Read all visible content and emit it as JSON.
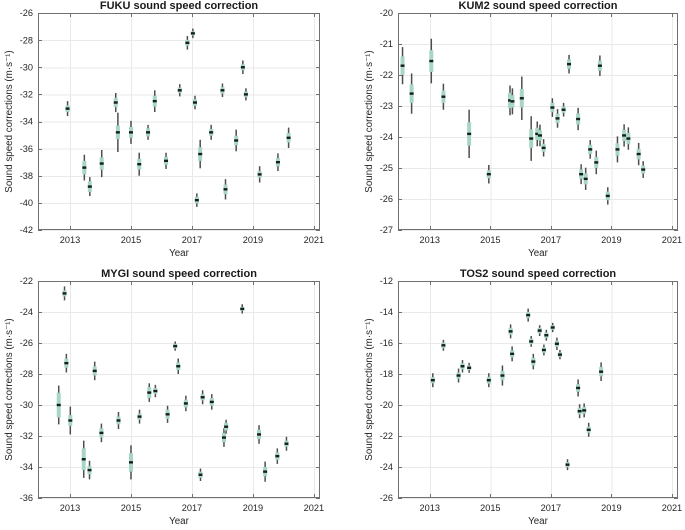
{
  "figure": {
    "background": "#ffffff",
    "description": "2x2 grid of MATLAB-style errorbar scatter plots of GNSS-A sound speed corrections versus year for four seafloor stations"
  },
  "style": {
    "errorbar_color": "#4d4d4d",
    "box_fill": "#a7d7c4",
    "marker_color": "#13201b",
    "grid_color": "#e9e9e9",
    "axis_color": "#707070",
    "text_color": "#262626",
    "title_color": "#1a1a1a"
  },
  "chart_data": [
    {
      "type": "scatter",
      "title": "FUKU sound speed correction",
      "xlabel": "Year",
      "ylabel": "Sound speed corrections (m·s⁻¹)",
      "xlim": [
        2011.95,
        2021.2
      ],
      "ylim": [
        -42,
        -26
      ],
      "xticks": [
        2013,
        2015,
        2017,
        2019,
        2021
      ],
      "yticks": [
        -42,
        -40,
        -38,
        -36,
        -34,
        -32,
        -30,
        -28,
        -26
      ],
      "grid": true,
      "legend": null,
      "point_format": [
        "year",
        "correction_m_per_s",
        "error_half_range",
        "box_half_range"
      ],
      "points": [
        [
          2012.92,
          -33.05,
          0.55,
          0.25
        ],
        [
          2013.47,
          -37.4,
          0.95,
          0.5
        ],
        [
          2013.65,
          -38.8,
          0.7,
          0.4
        ],
        [
          2014.04,
          -37.1,
          1.0,
          0.45
        ],
        [
          2014.5,
          -32.6,
          0.7,
          0.35
        ],
        [
          2014.57,
          -34.8,
          1.45,
          0.5
        ],
        [
          2015.0,
          -34.8,
          0.85,
          0.4
        ],
        [
          2015.27,
          -37.15,
          0.85,
          0.4
        ],
        [
          2015.56,
          -34.8,
          0.55,
          0.3
        ],
        [
          2015.78,
          -32.5,
          0.8,
          0.4
        ],
        [
          2016.15,
          -36.9,
          0.6,
          0.3
        ],
        [
          2016.6,
          -31.7,
          0.45,
          0.2
        ],
        [
          2016.85,
          -28.2,
          0.5,
          0.22
        ],
        [
          2017.03,
          -27.5,
          0.35,
          0.15
        ],
        [
          2017.1,
          -32.6,
          0.5,
          0.25
        ],
        [
          2017.16,
          -39.8,
          0.5,
          0.25
        ],
        [
          2017.27,
          -36.4,
          1.05,
          0.5
        ],
        [
          2017.63,
          -34.8,
          0.55,
          0.25
        ],
        [
          2018.0,
          -31.7,
          0.5,
          0.25
        ],
        [
          2018.1,
          -39.0,
          0.75,
          0.35
        ],
        [
          2018.45,
          -35.4,
          0.8,
          0.35
        ],
        [
          2018.67,
          -30.0,
          0.5,
          0.22
        ],
        [
          2018.77,
          -32.0,
          0.45,
          0.2
        ],
        [
          2019.22,
          -37.9,
          0.6,
          0.25
        ],
        [
          2019.82,
          -37.0,
          0.65,
          0.3
        ],
        [
          2020.17,
          -35.2,
          0.75,
          0.35
        ]
      ]
    },
    {
      "type": "scatter",
      "title": "KUM2 sound speed correction",
      "xlabel": "Year",
      "ylabel": "Sound speed corrections (m·s⁻¹)",
      "xlim": [
        2011.95,
        2021.2
      ],
      "ylim": [
        -27,
        -20
      ],
      "xticks": [
        2013,
        2015,
        2017,
        2019,
        2021
      ],
      "yticks": [
        -27,
        -26,
        -25,
        -24,
        -23,
        -22,
        -21,
        -20
      ],
      "grid": true,
      "legend": null,
      "point_format": [
        "year",
        "correction_m_per_s",
        "error_half_range",
        "box_half_range"
      ],
      "points": [
        [
          2012.1,
          -21.7,
          0.6,
          0.3
        ],
        [
          2012.4,
          -22.6,
          0.65,
          0.3
        ],
        [
          2013.05,
          -21.55,
          0.72,
          0.35
        ],
        [
          2013.45,
          -22.7,
          0.42,
          0.2
        ],
        [
          2014.3,
          -23.9,
          0.78,
          0.38
        ],
        [
          2014.95,
          -25.2,
          0.3,
          0.13
        ],
        [
          2015.65,
          -22.82,
          0.48,
          0.25
        ],
        [
          2015.73,
          -22.85,
          0.42,
          0.2
        ],
        [
          2016.04,
          -22.75,
          0.7,
          0.3
        ],
        [
          2016.35,
          -24.05,
          0.72,
          0.3
        ],
        [
          2016.55,
          -23.9,
          0.4,
          0.2
        ],
        [
          2016.64,
          -23.95,
          0.35,
          0.17
        ],
        [
          2016.76,
          -24.35,
          0.28,
          0.13
        ],
        [
          2017.05,
          -23.05,
          0.3,
          0.15
        ],
        [
          2017.22,
          -23.4,
          0.3,
          0.15
        ],
        [
          2017.42,
          -23.12,
          0.22,
          0.1
        ],
        [
          2017.6,
          -21.65,
          0.3,
          0.15
        ],
        [
          2017.9,
          -23.42,
          0.36,
          0.18
        ],
        [
          2018.0,
          -25.2,
          0.32,
          0.15
        ],
        [
          2018.15,
          -25.35,
          0.36,
          0.18
        ],
        [
          2018.3,
          -24.4,
          0.3,
          0.15
        ],
        [
          2018.5,
          -24.82,
          0.38,
          0.18
        ],
        [
          2018.62,
          -21.7,
          0.33,
          0.16
        ],
        [
          2018.88,
          -25.9,
          0.28,
          0.14
        ],
        [
          2019.2,
          -24.4,
          0.42,
          0.2
        ],
        [
          2019.42,
          -23.95,
          0.36,
          0.18
        ],
        [
          2019.56,
          -24.05,
          0.36,
          0.18
        ],
        [
          2019.9,
          -24.55,
          0.36,
          0.17
        ],
        [
          2020.05,
          -25.05,
          0.27,
          0.13
        ]
      ]
    },
    {
      "type": "scatter",
      "title": "MYGI sound speed correction",
      "xlabel": "Year",
      "ylabel": "Sound speed corrections (m·s⁻¹)",
      "xlim": [
        2011.95,
        2021.2
      ],
      "ylim": [
        -36,
        -22
      ],
      "xticks": [
        2013,
        2015,
        2017,
        2019,
        2021
      ],
      "yticks": [
        -36,
        -34,
        -32,
        -30,
        -28,
        -26,
        -24,
        -22
      ],
      "grid": true,
      "legend": null,
      "point_format": [
        "year",
        "correction_m_per_s",
        "error_half_range",
        "box_half_range"
      ],
      "points": [
        [
          2012.63,
          -30.0,
          1.25,
          0.8
        ],
        [
          2012.82,
          -22.8,
          0.45,
          0.2
        ],
        [
          2012.88,
          -27.3,
          0.6,
          0.3
        ],
        [
          2013.01,
          -31.0,
          0.9,
          0.35
        ],
        [
          2013.45,
          -33.5,
          1.2,
          0.7
        ],
        [
          2013.64,
          -34.2,
          0.6,
          0.28
        ],
        [
          2013.81,
          -27.8,
          0.6,
          0.3
        ],
        [
          2014.03,
          -31.8,
          0.6,
          0.3
        ],
        [
          2014.59,
          -31.0,
          0.55,
          0.25
        ],
        [
          2015.0,
          -33.7,
          1.1,
          0.6
        ],
        [
          2015.28,
          -30.75,
          0.45,
          0.2
        ],
        [
          2015.6,
          -29.2,
          0.6,
          0.35
        ],
        [
          2015.8,
          -29.1,
          0.4,
          0.2
        ],
        [
          2016.2,
          -30.6,
          0.55,
          0.3
        ],
        [
          2016.45,
          -26.2,
          0.3,
          0.15
        ],
        [
          2016.55,
          -27.5,
          0.5,
          0.25
        ],
        [
          2016.8,
          -29.9,
          0.5,
          0.25
        ],
        [
          2017.28,
          -34.5,
          0.4,
          0.2
        ],
        [
          2017.35,
          -29.5,
          0.45,
          0.2
        ],
        [
          2017.65,
          -29.8,
          0.5,
          0.25
        ],
        [
          2018.05,
          -32.1,
          0.6,
          0.3
        ],
        [
          2018.12,
          -31.4,
          0.45,
          0.25
        ],
        [
          2018.65,
          -23.8,
          0.3,
          0.12
        ],
        [
          2019.2,
          -31.9,
          0.6,
          0.3
        ],
        [
          2019.4,
          -34.3,
          0.65,
          0.3
        ],
        [
          2019.8,
          -33.3,
          0.5,
          0.25
        ],
        [
          2020.1,
          -32.5,
          0.45,
          0.2
        ]
      ]
    },
    {
      "type": "scatter",
      "title": "TOS2 sound speed correction",
      "xlabel": "Year",
      "ylabel": "Sound speed corrections (m·s⁻¹)",
      "xlim": [
        2011.95,
        2021.2
      ],
      "ylim": [
        -26,
        -12
      ],
      "xticks": [
        2013,
        2015,
        2017,
        2019,
        2021
      ],
      "yticks": [
        -26,
        -24,
        -22,
        -20,
        -18,
        -16,
        -14,
        -12
      ],
      "grid": true,
      "legend": null,
      "point_format": [
        "year",
        "correction_m_per_s",
        "error_half_range",
        "box_half_range"
      ],
      "points": [
        [
          2013.1,
          -18.4,
          0.45,
          0.2
        ],
        [
          2013.45,
          -16.15,
          0.35,
          0.18
        ],
        [
          2013.95,
          -18.1,
          0.45,
          0.2
        ],
        [
          2014.08,
          -17.5,
          0.4,
          0.2
        ],
        [
          2014.3,
          -17.6,
          0.32,
          0.15
        ],
        [
          2014.95,
          -18.4,
          0.45,
          0.22
        ],
        [
          2015.4,
          -18.1,
          0.65,
          0.3
        ],
        [
          2015.67,
          -15.25,
          0.45,
          0.22
        ],
        [
          2015.72,
          -16.7,
          0.48,
          0.22
        ],
        [
          2016.25,
          -14.2,
          0.42,
          0.2
        ],
        [
          2016.35,
          -15.9,
          0.35,
          0.18
        ],
        [
          2016.42,
          -17.2,
          0.5,
          0.25
        ],
        [
          2016.63,
          -15.2,
          0.35,
          0.18
        ],
        [
          2016.77,
          -16.45,
          0.35,
          0.18
        ],
        [
          2016.85,
          -15.5,
          0.35,
          0.18
        ],
        [
          2017.06,
          -15.0,
          0.3,
          0.15
        ],
        [
          2017.2,
          -16.05,
          0.4,
          0.2
        ],
        [
          2017.3,
          -16.75,
          0.3,
          0.15
        ],
        [
          2017.55,
          -23.85,
          0.35,
          0.17
        ],
        [
          2017.9,
          -18.9,
          0.55,
          0.25
        ],
        [
          2017.95,
          -20.4,
          0.45,
          0.22
        ],
        [
          2018.1,
          -20.35,
          0.45,
          0.22
        ],
        [
          2018.25,
          -21.6,
          0.45,
          0.2
        ],
        [
          2018.66,
          -17.85,
          0.6,
          0.3
        ]
      ]
    }
  ]
}
